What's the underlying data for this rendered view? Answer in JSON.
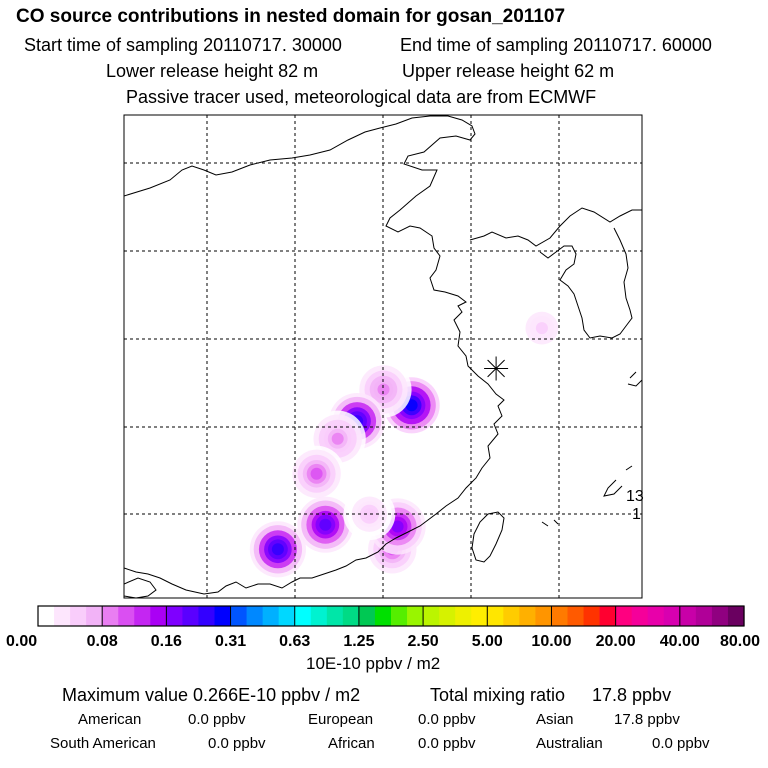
{
  "header": {
    "title": "CO  source contributions in nested domain for gosan_201107",
    "start_time": "Start time of sampling 20110717. 30000",
    "end_time": "End time of sampling 20110717. 60000",
    "lower_height": "Lower release height   82 m",
    "upper_height": "Upper release height   62 m",
    "tracer_note": "Passive tracer used, meteorological data are from ECMWF"
  },
  "chart_data": {
    "type": "heatmap",
    "title": "CO  source contributions in nested domain for gosan_201107",
    "map_partial_labels": [
      "13",
      "1"
    ],
    "receptor_marker": "star",
    "colorbar": {
      "unit_label": "10E-10 ppbv / m2",
      "tick_labels": [
        "0.00",
        "0.08",
        "0.16",
        "0.31",
        "0.63",
        "1.25",
        "2.50",
        "5.00",
        "10.00",
        "20.00",
        "40.00",
        "80.00"
      ],
      "bins": [
        [
          "#ffffff",
          "#fde6fd",
          "#f9cdfb",
          "#f2b3f7"
        ],
        [
          "#e97ef2",
          "#da4ff2",
          "#c426f2",
          "#aa00f5"
        ],
        [
          "#7f00ff",
          "#5a00ff",
          "#3300ff",
          "#0000ff"
        ],
        [
          "#0055ff",
          "#0088ff",
          "#00b0ff",
          "#00d8ff"
        ],
        [
          "#00ffff",
          "#00f2d0",
          "#00e6a8",
          "#00db85"
        ],
        [
          "#00c853",
          "#00e000",
          "#55ee00",
          "#99f500"
        ],
        [
          "#bbf500",
          "#d6f200",
          "#eef000",
          "#ffee00"
        ],
        [
          "#ffe600",
          "#ffcc00",
          "#ffb000",
          "#ff9500"
        ],
        [
          "#ff7a00",
          "#ff5a00",
          "#ff3300",
          "#ff0030"
        ],
        [
          "#ff0080",
          "#f5009a",
          "#e800aa",
          "#d800b0"
        ],
        [
          "#c800a8",
          "#b00098",
          "#900080",
          "#6a0060"
        ]
      ]
    },
    "hotspots": [
      {
        "lon": 121.4,
        "lat": 31.2,
        "value": 0.27
      },
      {
        "lon": 119.8,
        "lat": 32.1,
        "value": 0.09
      },
      {
        "lon": 118.3,
        "lat": 30.3,
        "value": 0.24
      },
      {
        "lon": 117.2,
        "lat": 29.3,
        "value": 0.08
      },
      {
        "lon": 116.0,
        "lat": 27.3,
        "value": 0.1
      },
      {
        "lon": 116.5,
        "lat": 24.4,
        "value": 0.2
      },
      {
        "lon": 113.8,
        "lat": 23.0,
        "value": 0.25
      },
      {
        "lon": 120.3,
        "lat": 23.0,
        "value": 0.1
      },
      {
        "lon": 120.6,
        "lat": 24.3,
        "value": 0.18
      },
      {
        "lon": 119.0,
        "lat": 25.0,
        "value": 0.05
      },
      {
        "lon": 128.8,
        "lat": 35.6,
        "value": 0.04
      }
    ],
    "receptor": {
      "lon": 126.2,
      "lat": 33.3
    }
  },
  "summary": {
    "max_value": "Maximum value  0.266E-10 ppbv / m2",
    "total_label": "Total mixing ratio",
    "total_value": "17.8 ppbv",
    "regions": [
      {
        "name": "American",
        "value": "0.0 ppbv"
      },
      {
        "name": "European",
        "value": "0.0 ppbv"
      },
      {
        "name": "Asian",
        "value": "17.8 ppbv"
      },
      {
        "name": "South American",
        "value": "0.0 ppbv"
      },
      {
        "name": "African",
        "value": "0.0 ppbv"
      },
      {
        "name": "Australian",
        "value": "0.0 ppbv"
      }
    ]
  }
}
